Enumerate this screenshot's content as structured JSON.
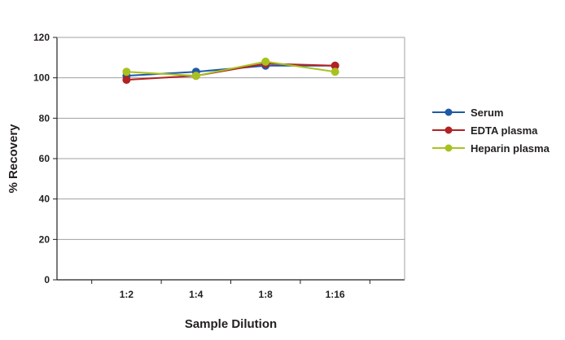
{
  "chart_data": {
    "type": "line",
    "title": "",
    "xlabel": "Sample Dilution",
    "ylabel": "% Recovery",
    "categories": [
      "1:2",
      "1:4",
      "1:8",
      "1:16"
    ],
    "ylim": [
      0,
      120
    ],
    "yticks": [
      0,
      20,
      40,
      60,
      80,
      100,
      120
    ],
    "grid": true,
    "legend_position": "right",
    "series": [
      {
        "name": "Serum",
        "color": "#1f5aa6",
        "values": [
          101,
          103,
          106,
          106
        ]
      },
      {
        "name": "EDTA plasma",
        "color": "#b22222",
        "values": [
          99,
          101,
          107,
          106
        ]
      },
      {
        "name": "Heparin plasma",
        "color": "#a8c120",
        "values": [
          103,
          101,
          108,
          103
        ]
      }
    ]
  }
}
